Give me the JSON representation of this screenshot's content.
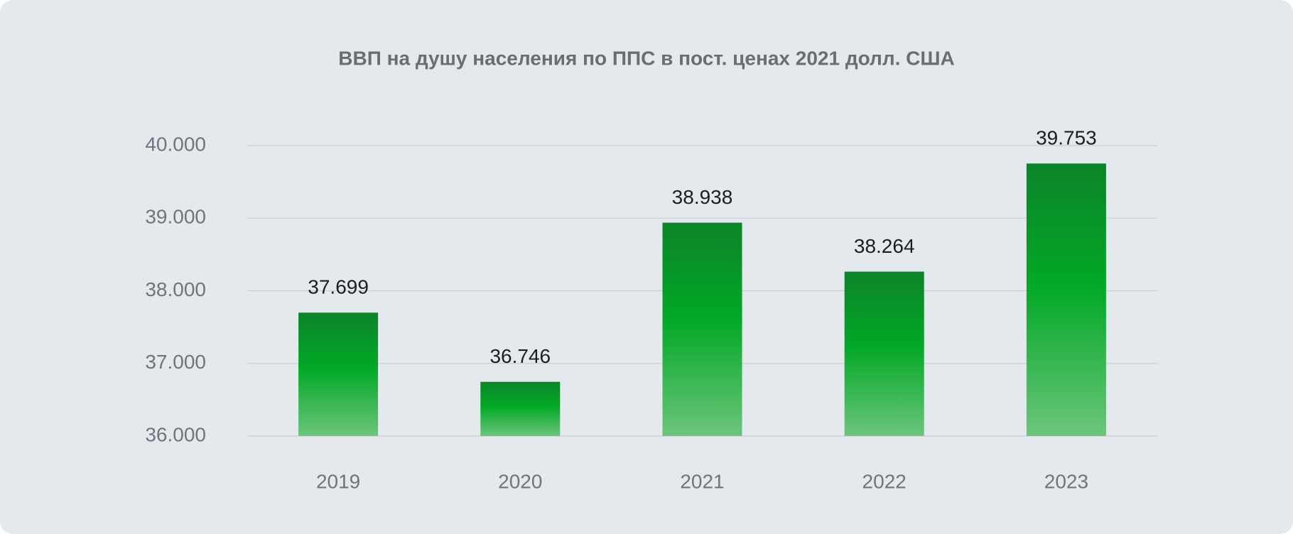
{
  "chart_data": {
    "type": "bar",
    "title": "ВВП на душу населения по ППС в пост. ценах 2021 долл. США",
    "categories": [
      "2019",
      "2020",
      "2021",
      "2022",
      "2023"
    ],
    "values": [
      37699,
      36746,
      38938,
      38264,
      39753
    ],
    "value_labels": [
      "37.699",
      "36.746",
      "38.938",
      "38.264",
      "39.753"
    ],
    "ylim": [
      36000,
      40000
    ],
    "yticks": [
      {
        "value": 36000,
        "label": "36.000"
      },
      {
        "value": 37000,
        "label": "37.000"
      },
      {
        "value": 38000,
        "label": "38.000"
      },
      {
        "value": 39000,
        "label": "39.000"
      },
      {
        "value": 40000,
        "label": "40.000"
      }
    ],
    "grid": true
  }
}
